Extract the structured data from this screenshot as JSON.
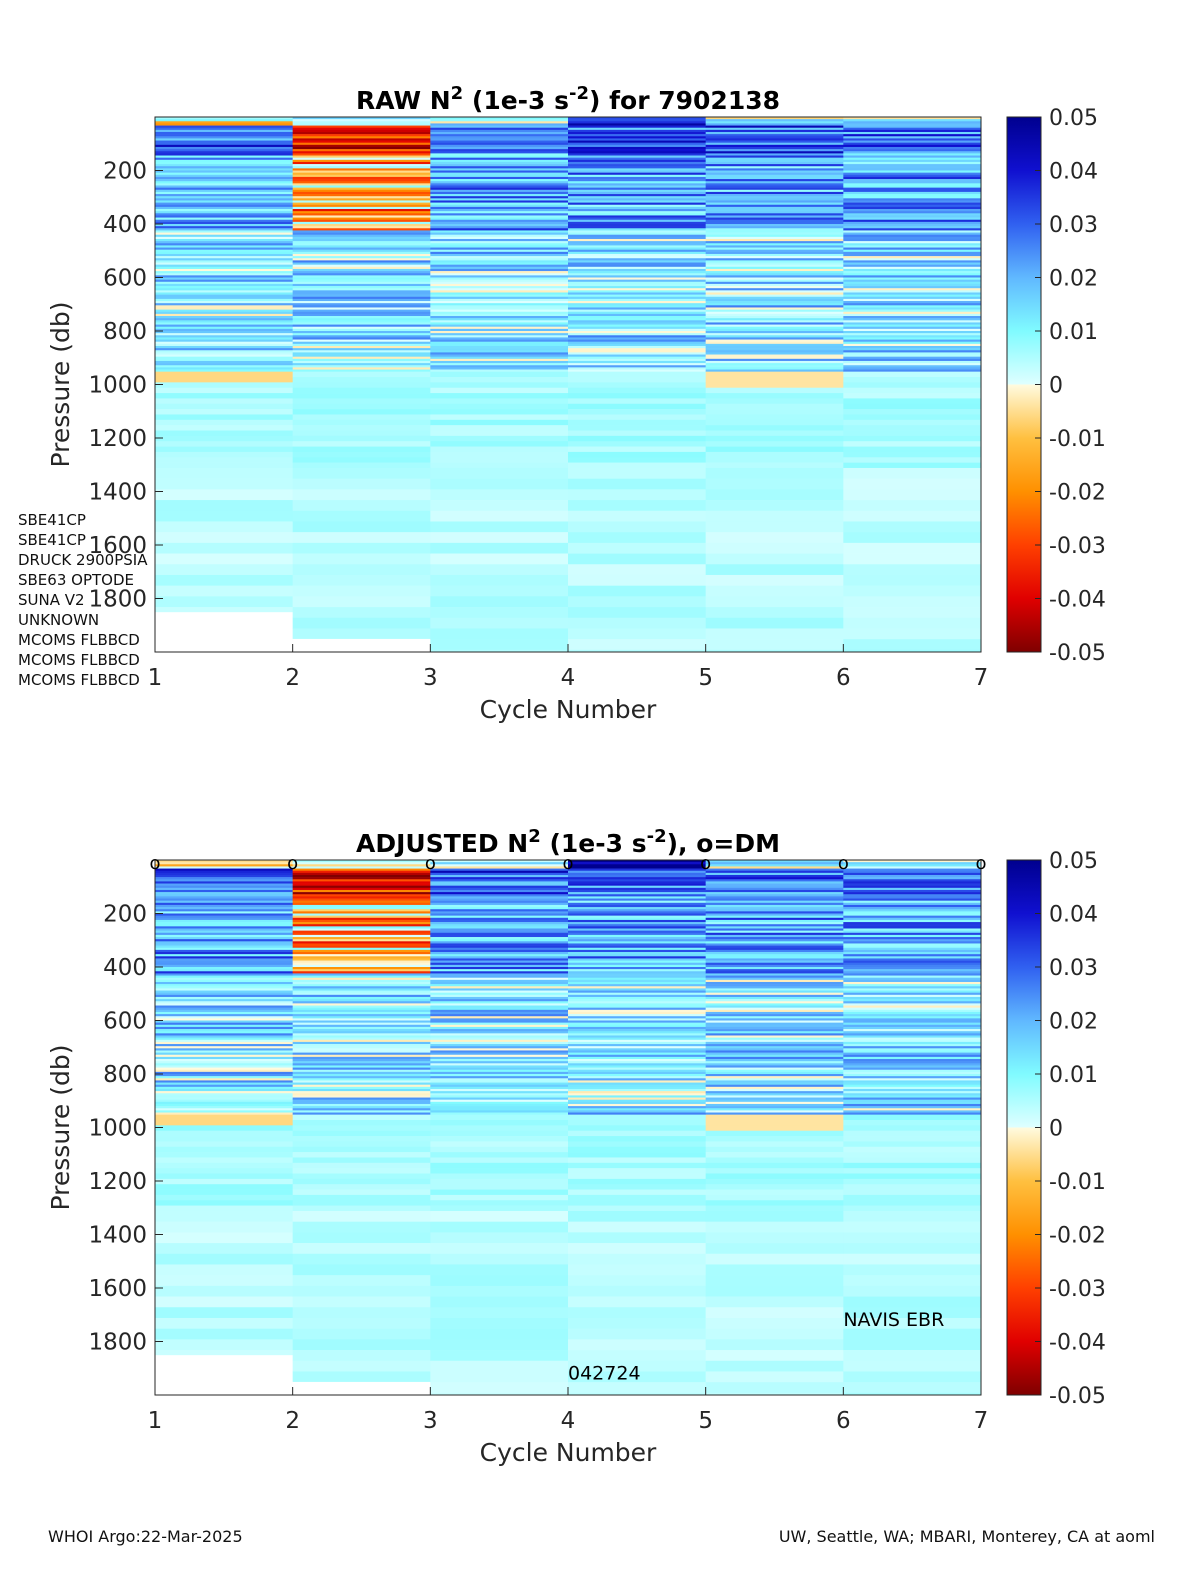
{
  "chart_data": [
    {
      "type": "heatmap",
      "title_prefix": "RAW N",
      "title_sup1": "2",
      "title_mid": " (1e-3 s",
      "title_sup2": "-2",
      "title_suffix": ") for 7902138",
      "xlabel": "Cycle Number",
      "ylabel": "Pressure (db)",
      "x": [
        1,
        2,
        3,
        4,
        5,
        6,
        7
      ],
      "xlim": [
        1,
        7
      ],
      "ylim": [
        2000,
        0
      ],
      "yticks": [
        200,
        400,
        600,
        800,
        1000,
        1200,
        1400,
        1600,
        1800
      ],
      "profile_max_pressure": [
        1850,
        1950,
        2000,
        2000,
        2000,
        2000
      ],
      "colorbar": {
        "ticks": [
          "0.05",
          "0.04",
          "0.03",
          "0.02",
          "0.01",
          "0",
          "-0.01",
          "-0.02",
          "-0.03",
          "-0.04",
          "-0.05"
        ],
        "clim": [
          -0.05,
          0.05
        ],
        "colormap": "jet-like diverging"
      },
      "dm_markers": false
    },
    {
      "type": "heatmap",
      "title_prefix": "ADJUSTED N",
      "title_sup1": "2",
      "title_mid": " (1e-3 s",
      "title_sup2": "-2",
      "title_suffix": "), o=DM",
      "xlabel": "Cycle Number",
      "ylabel": "Pressure (db)",
      "x": [
        1,
        2,
        3,
        4,
        5,
        6,
        7
      ],
      "xlim": [
        1,
        7
      ],
      "ylim": [
        2000,
        0
      ],
      "yticks": [
        200,
        400,
        600,
        800,
        1000,
        1200,
        1400,
        1600,
        1800
      ],
      "profile_max_pressure": [
        1850,
        1950,
        2000,
        2000,
        2000,
        2000
      ],
      "colorbar": {
        "ticks": [
          "0.05",
          "0.04",
          "0.03",
          "0.02",
          "0.01",
          "0",
          "-0.01",
          "-0.02",
          "-0.03",
          "-0.04",
          "-0.05"
        ],
        "clim": [
          -0.05,
          0.05
        ],
        "colormap": "jet-like diverging"
      },
      "dm_markers": true,
      "dm_marker_label": "o",
      "annotations": [
        "NAVIS EBR",
        "042724"
      ]
    }
  ],
  "sensors": [
    "SBE41CP",
    "SBE41CP",
    "DRUCK 2900PSIA",
    "SBE63 OPTODE",
    "SUNA V2",
    "UNKNOWN",
    "MCOMS FLBBCD",
    "MCOMS FLBBCD",
    "MCOMS FLBBCD"
  ],
  "footer": {
    "left": "WHOI Argo:22-Mar-2025",
    "right": "UW, Seattle, WA; MBARI, Monterey, CA at aoml"
  }
}
